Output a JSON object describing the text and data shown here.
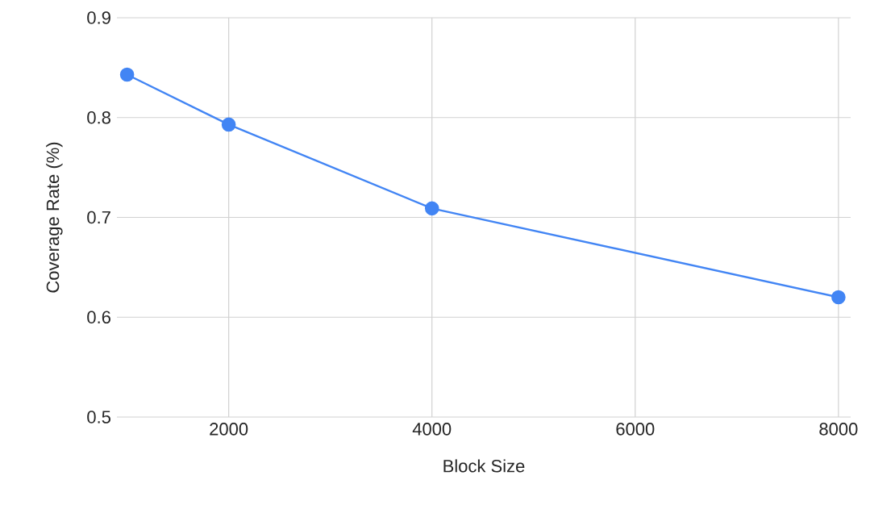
{
  "chart_data": {
    "type": "line",
    "xlabel": "Block Size",
    "ylabel": "Coverage Rate (%)",
    "x": [
      1000,
      2000,
      4000,
      8000
    ],
    "series": [
      {
        "color": "#4285f4",
        "values": [
          0.843,
          0.793,
          0.709,
          0.62
        ]
      }
    ],
    "xlim": [
      900,
      8120
    ],
    "ylim": [
      0.5,
      0.9
    ],
    "xticks": [
      2000,
      4000,
      6000,
      8000
    ],
    "yticks": [
      0.5,
      0.6,
      0.7,
      0.8,
      0.9
    ],
    "grid": true,
    "marker": "circle",
    "line_style": "solid"
  }
}
